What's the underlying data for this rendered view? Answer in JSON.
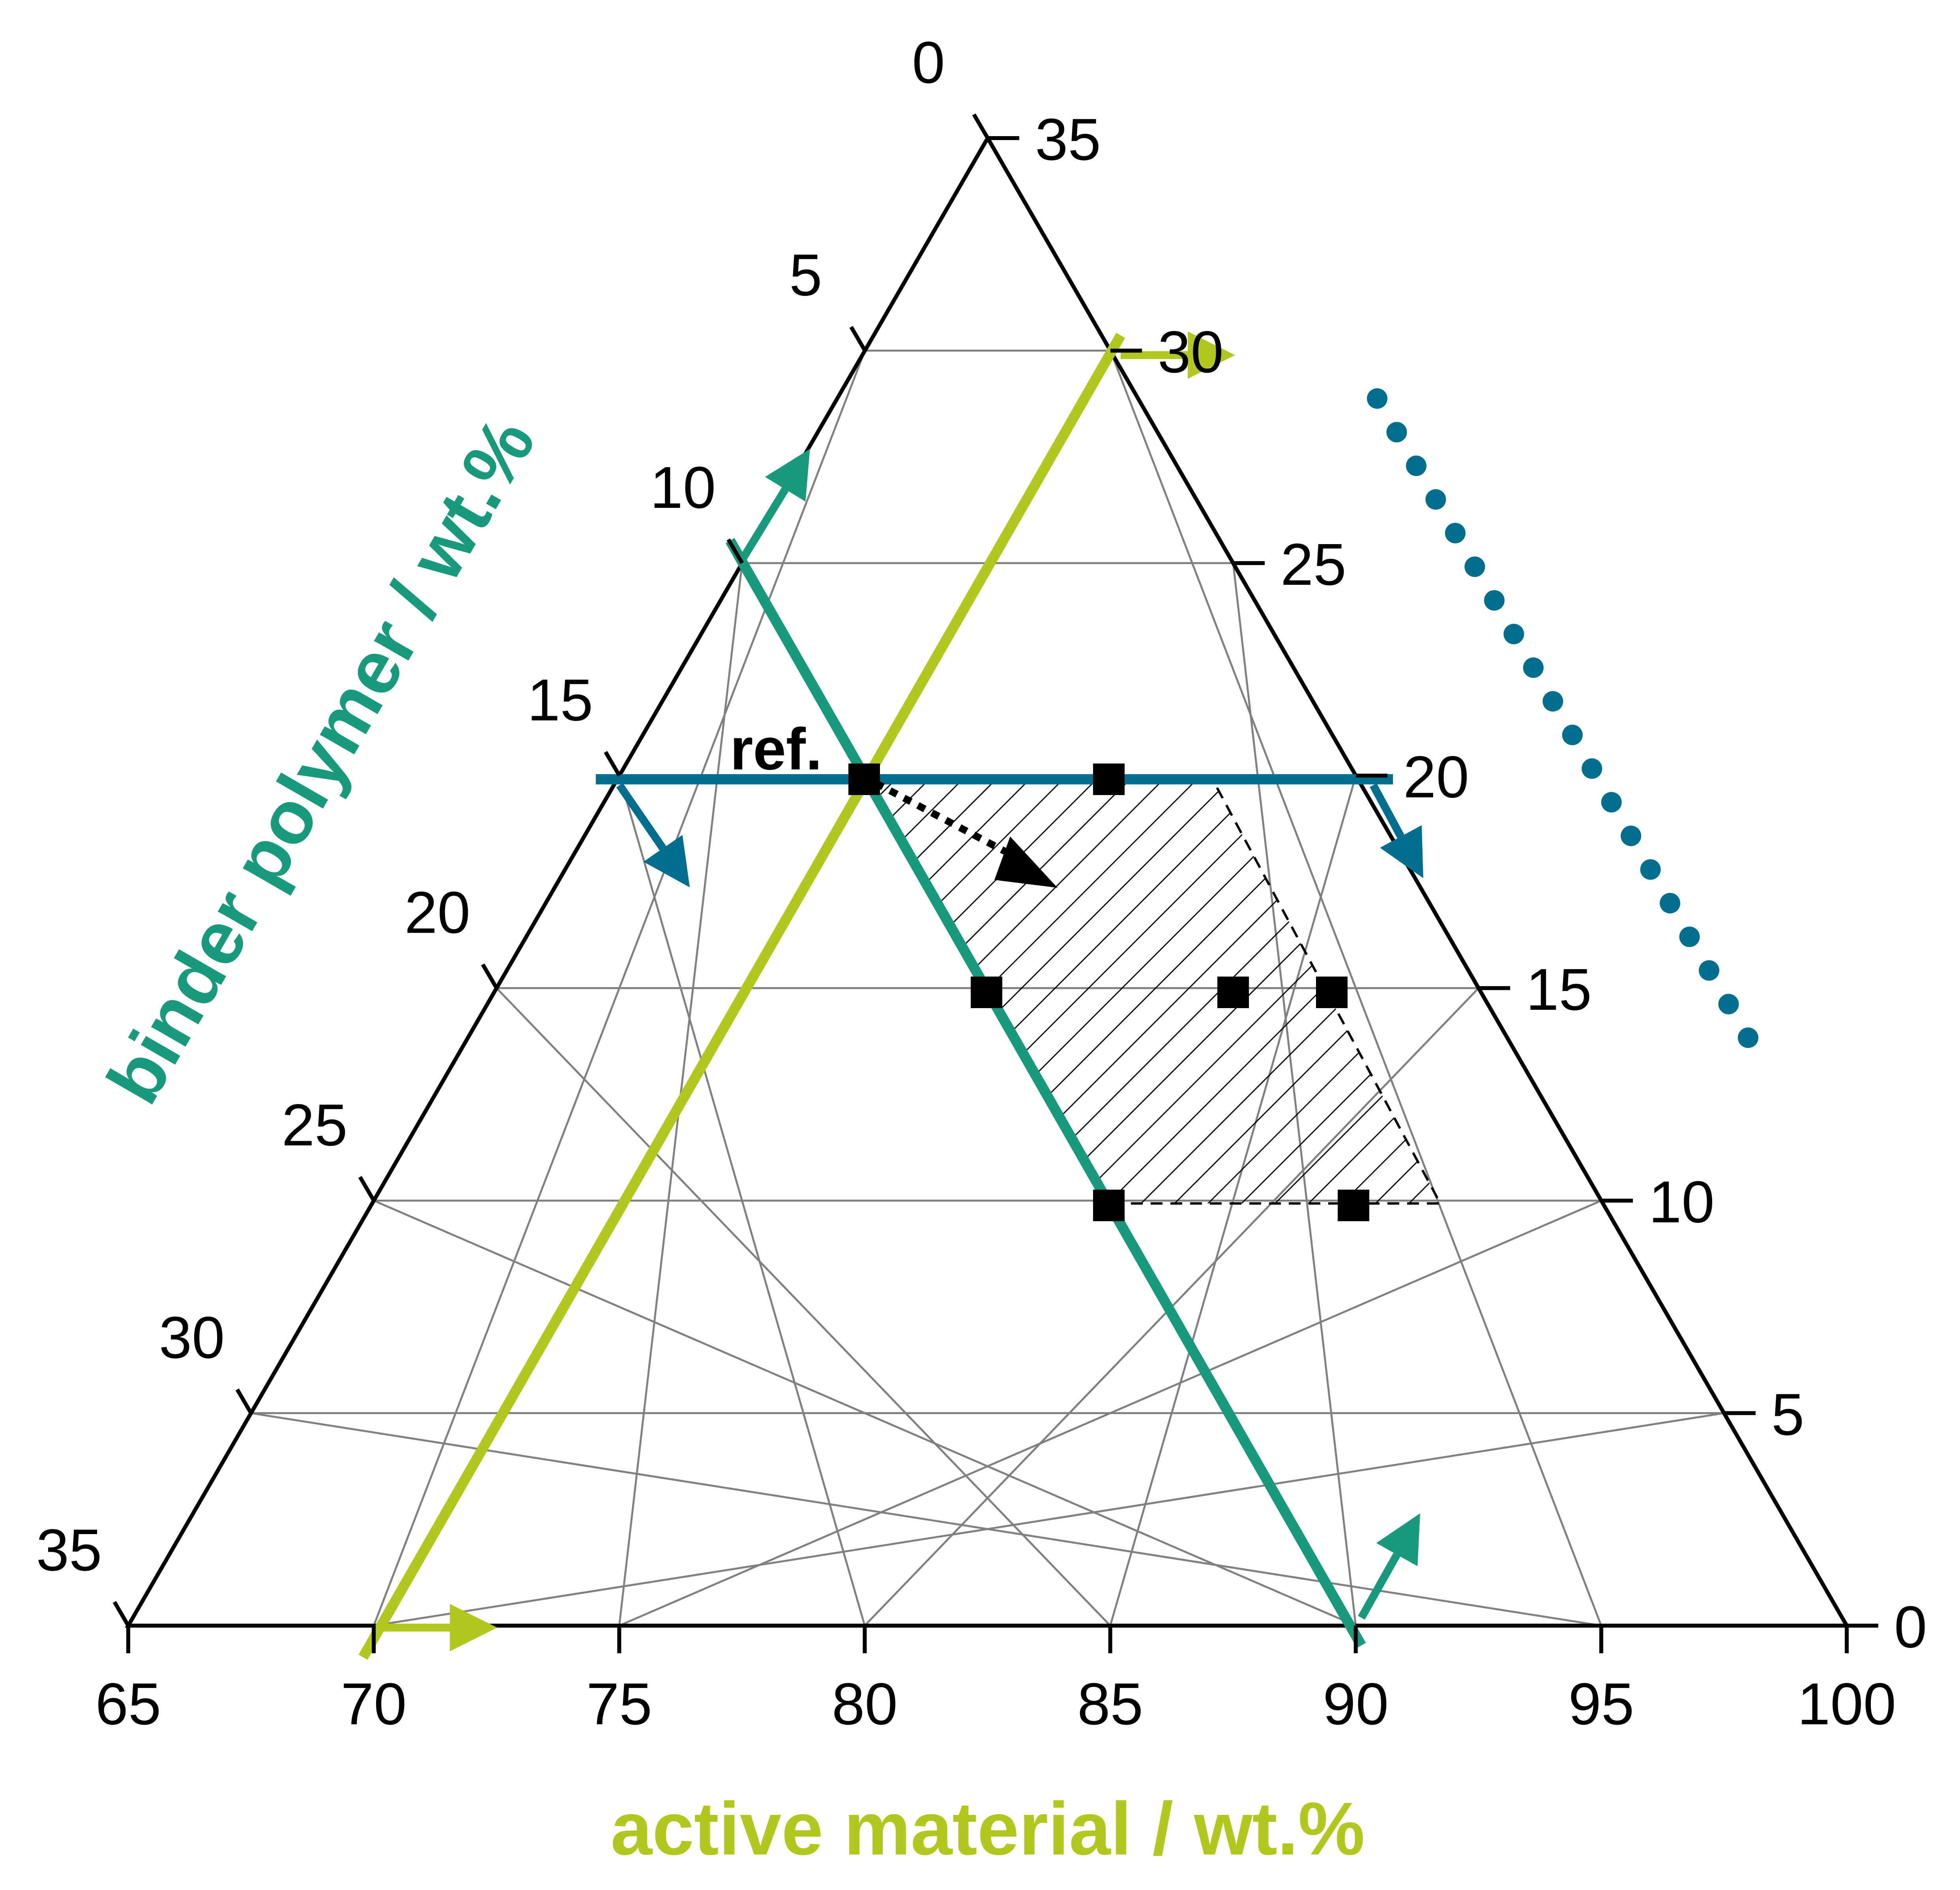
{
  "chart_data": {
    "type": "scatter",
    "subtype": "ternary",
    "axes": {
      "bottom": {
        "label": "active material / wt.%",
        "range": [
          65,
          100
        ],
        "ticks": [
          65,
          70,
          75,
          80,
          85,
          90,
          95,
          100
        ],
        "tick_labels": [
          "65",
          "70",
          "75",
          "80",
          "85",
          "90",
          "95",
          "100"
        ],
        "color": "#B2C81E"
      },
      "left": {
        "label": "binder polymer / wt.%",
        "range": [
          0,
          35
        ],
        "ticks": [
          0,
          5,
          10,
          15,
          20,
          25,
          30,
          35
        ],
        "tick_labels": [
          "0",
          "5",
          "10",
          "15",
          "20",
          "25",
          "30",
          "35"
        ],
        "color": "#1A9A7C"
      },
      "right": {
        "label": "",
        "range": [
          0,
          35
        ],
        "ticks": [
          0,
          5,
          10,
          15,
          20,
          25,
          30,
          35
        ],
        "tick_labels": [
          "0",
          "5",
          "10",
          "15",
          "20",
          "25",
          "30",
          "35"
        ],
        "color": "#006E8E"
      }
    },
    "grid": true,
    "reference_label": "ref.",
    "series": [
      {
        "marker": "square",
        "color": "#000000",
        "points": [
          {
            "active": 80,
            "binder": 10,
            "third": 20
          },
          {
            "active": 85,
            "binder": 5,
            "third": 20
          },
          {
            "active": 82.5,
            "binder": 12.5,
            "third": 15
          },
          {
            "active": 87.5,
            "binder": 7.5,
            "third": 15
          },
          {
            "active": 89.5,
            "binder": 5.5,
            "third": 15
          },
          {
            "active": 85,
            "binder": 15,
            "third": 10
          },
          {
            "active": 90,
            "binder": 10,
            "third": 10
          }
        ]
      }
    ],
    "reference_point": {
      "active": 80,
      "binder": 10,
      "third": 20
    },
    "region": {
      "fill": "hatched",
      "vertices": [
        {
          "active": 80,
          "binder": 10,
          "third": 20
        },
        {
          "active": 87,
          "binder": 3,
          "third": 20
        },
        {
          "active": 92,
          "binder": 0,
          "third": 8
        },
        {
          "active": 88,
          "binder": 2,
          "third": 10
        }
      ],
      "boundary": [
        {
          "active": 80,
          "binder": 10,
          "third": 20
        },
        {
          "active": 87,
          "binder": 3,
          "third": 20
        },
        {
          "active": 93,
          "binder": 7,
          "third": 10
        },
        {
          "active": 85,
          "binder": 15,
          "third": 10
        }
      ]
    },
    "lines": [
      {
        "name": "",
        "color": "#B2C81E",
        "from": {
          "active": 70,
          "binder": 30,
          "third": 0
        },
        "to": {
          "active": 70,
          "binder": 0,
          "third": 30
        }
      },
      {
        "name": "",
        "color": "#1A9A7C",
        "from": {
          "active": 90,
          "binder": 10,
          "third": 0
        },
        "to": {
          "active": 78.5,
          "binder": 21.5,
          "third": 0
        }
      },
      {
        "name": "",
        "color": "#006E8E",
        "from": {
          "active": 65,
          "binder": 15,
          "third": 20
        },
        "to": {
          "active": 80,
          "binder": 0,
          "third": 20
        }
      }
    ],
    "direction_arrow": {
      "color": "#000000",
      "style": "dotted",
      "from": {
        "active": 80,
        "binder": 10,
        "third": 20
      },
      "to": {
        "active": 83.5,
        "binder": 8.5,
        "third": 18
      }
    }
  }
}
